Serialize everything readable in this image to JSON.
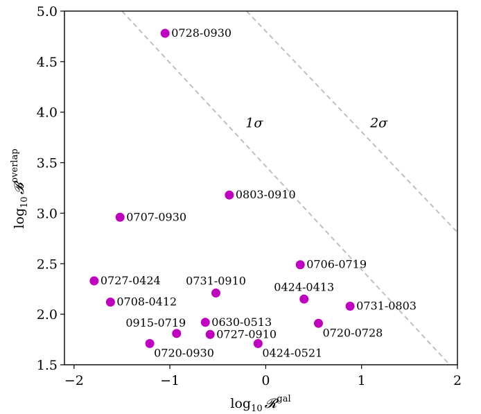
{
  "chart_data": {
    "type": "scatter",
    "xlabel": {
      "base": "log",
      "sub": "10",
      "sym": "𝓡",
      "sup": "gal"
    },
    "ylabel": {
      "base": "log",
      "sub": "10",
      "sym": "𝓑",
      "sup": "overlap"
    },
    "xlim": [
      -2.1,
      2.0
    ],
    "ylim": [
      1.5,
      5.0
    ],
    "xticks": [
      -2,
      -1,
      0,
      1,
      2
    ],
    "xtick_labels": [
      "−2",
      "−1",
      "0",
      "1",
      "2"
    ],
    "yticks": [
      1.5,
      2.0,
      2.5,
      3.0,
      3.5,
      4.0,
      4.5,
      5.0
    ],
    "ytick_labels": [
      "1.5",
      "2.0",
      "2.5",
      "3.0",
      "3.5",
      "4.0",
      "4.5",
      "5.0"
    ],
    "grid": false,
    "marker_color": "#bf00bf",
    "line_color": "#bfbfbf",
    "points": [
      {
        "label": "0728-0930",
        "x": -1.05,
        "y": 4.78,
        "pos": "right"
      },
      {
        "label": "0803-0910",
        "x": -0.38,
        "y": 3.18,
        "pos": "right"
      },
      {
        "label": "0707-0930",
        "x": -1.52,
        "y": 2.96,
        "pos": "right"
      },
      {
        "label": "0706-0719",
        "x": 0.36,
        "y": 2.49,
        "pos": "right"
      },
      {
        "label": "0727-0424",
        "x": -1.79,
        "y": 2.33,
        "pos": "right"
      },
      {
        "label": "0731-0910",
        "x": -0.52,
        "y": 2.21,
        "pos": "above"
      },
      {
        "label": "0424-0413",
        "x": 0.4,
        "y": 2.15,
        "pos": "above"
      },
      {
        "label": "0708-0412",
        "x": -1.62,
        "y": 2.12,
        "pos": "right"
      },
      {
        "label": "0731-0803",
        "x": 0.88,
        "y": 2.08,
        "pos": "right"
      },
      {
        "label": "0630-0513",
        "x": -0.63,
        "y": 1.92,
        "pos": "right"
      },
      {
        "label": "0720-0728",
        "x": 0.55,
        "y": 1.91,
        "pos": "below-right"
      },
      {
        "label": "0915-0719",
        "x": -0.93,
        "y": 1.81,
        "pos": "above-left"
      },
      {
        "label": "0727-0910",
        "x": -0.58,
        "y": 1.8,
        "pos": "right"
      },
      {
        "label": "0720-0930",
        "x": -1.21,
        "y": 1.71,
        "pos": "below-right"
      },
      {
        "label": "0424-0521",
        "x": -0.08,
        "y": 1.71,
        "pos": "below-right"
      }
    ],
    "lines": [
      {
        "label": "1σ",
        "from": [
          -1.5,
          5.0
        ],
        "to": [
          1.92,
          1.5
        ],
        "label_at": [
          -0.12,
          3.85
        ]
      },
      {
        "label": "2σ",
        "from": [
          -0.2,
          5.0
        ],
        "to": [
          2.0,
          2.81
        ],
        "label_at": [
          1.18,
          3.85
        ]
      }
    ]
  }
}
